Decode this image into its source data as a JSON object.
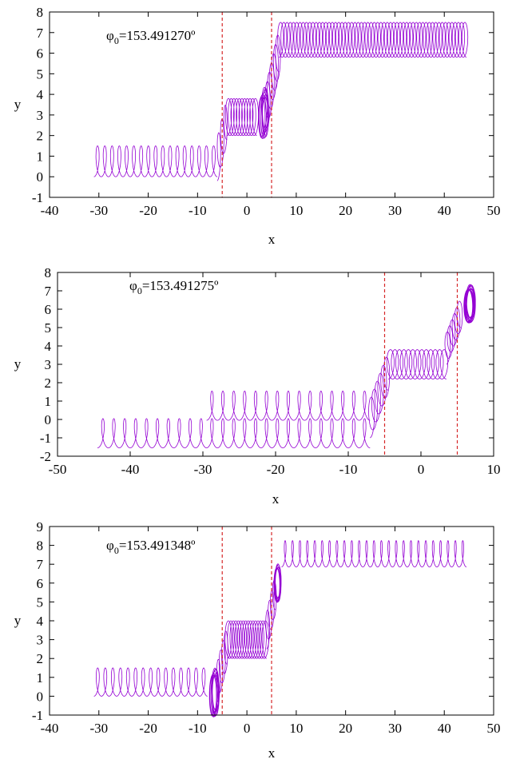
{
  "colors": {
    "trajectory": "#9400d3",
    "boundary": "#d62728",
    "axes": "#000000"
  },
  "chart_data": [
    {
      "type": "line",
      "annotation": {
        "symbol": "φ",
        "subscript": "0",
        "value": "=153.491270º"
      },
      "xlabel": "x",
      "ylabel": "y",
      "xlim": [
        -40,
        50
      ],
      "ylim": [
        -1,
        8
      ],
      "xticks": [
        -40,
        -30,
        -20,
        -10,
        0,
        10,
        20,
        30,
        40,
        50
      ],
      "yticks": [
        -1,
        0,
        1,
        2,
        3,
        4,
        5,
        6,
        7,
        8
      ],
      "boundaries": [
        -5,
        5
      ],
      "segments": [
        {
          "kind": "helix",
          "x_start": -31,
          "x_end": -6,
          "y_center": 0.75,
          "amplitude": 0.75,
          "loop_width": 1.3,
          "pitch": 1.5
        },
        {
          "kind": "helix",
          "x_start": -6,
          "x_end": -4,
          "y_start": 0.8,
          "y_end": 2.8,
          "amplitude": 1.0,
          "loop_width": 1.0,
          "pitch": 0.6
        },
        {
          "kind": "helix",
          "x_start": -4,
          "x_end": 2,
          "y_center": 2.9,
          "amplitude": 0.9,
          "loop_width": 1.5,
          "pitch": 0.55
        },
        {
          "kind": "cluster",
          "x_center": 3.4,
          "y_center": 3.1,
          "amplitude": 1.0,
          "loop_width": 1.3,
          "count": 10,
          "dx_span": 0.8,
          "dy_span": 0.5
        },
        {
          "kind": "helix",
          "x_start": 4,
          "x_end": 6.5,
          "y_start": 3.4,
          "y_end": 6.1,
          "amplitude": 1.0,
          "loop_width": 1.2,
          "pitch": 0.45
        },
        {
          "kind": "helix",
          "x_start": 6.5,
          "x_end": 44.5,
          "y_center": 6.65,
          "amplitude": 0.85,
          "loop_width": 1.5,
          "pitch": 0.65
        }
      ]
    },
    {
      "type": "line",
      "annotation": {
        "symbol": "φ",
        "subscript": "0",
        "value": "=153.491275º"
      },
      "xlabel": "x",
      "ylabel": "y",
      "xlim": [
        -50,
        10
      ],
      "ylim": [
        -2,
        8
      ],
      "xticks": [
        -50,
        -40,
        -30,
        -20,
        -10,
        0,
        10
      ],
      "yticks": [
        -2,
        -1,
        0,
        1,
        2,
        3,
        4,
        5,
        6,
        7,
        8
      ],
      "boundaries": [
        -5,
        5
      ],
      "segments": [
        {
          "kind": "helix",
          "x_start": -29.5,
          "x_end": -7,
          "y_center": 0.75,
          "amplitude": 0.8,
          "loop_width": 1.0,
          "pitch": 1.5
        },
        {
          "kind": "helix",
          "x_start": -44.5,
          "x_end": -7,
          "y_center": -0.75,
          "amplitude": 0.8,
          "loop_width": 1.0,
          "pitch": 1.5
        },
        {
          "kind": "helix",
          "x_start": -7,
          "x_end": -4.5,
          "y_start": 0.0,
          "y_end": 2.6,
          "amplitude": 1.0,
          "loop_width": 1.0,
          "pitch": 0.4
        },
        {
          "kind": "helix",
          "x_start": -4.5,
          "x_end": 3.5,
          "y_center": 3.0,
          "amplitude": 0.8,
          "loop_width": 1.3,
          "pitch": 0.6
        },
        {
          "kind": "helix",
          "x_start": 3.5,
          "x_end": 5.5,
          "y_start": 3.8,
          "y_end": 5.8,
          "amplitude": 0.8,
          "loop_width": 0.9,
          "pitch": 0.35
        },
        {
          "kind": "cluster",
          "x_center": 6.7,
          "y_center": 6.3,
          "amplitude": 0.9,
          "loop_width": 1.2,
          "count": 12,
          "dx_span": 0.4,
          "dy_span": 0.3
        }
      ]
    },
    {
      "type": "line",
      "annotation": {
        "symbol": "φ",
        "subscript": "0",
        "value": "=153.491348º"
      },
      "xlabel": "x",
      "ylabel": "y",
      "xlim": [
        -40,
        50
      ],
      "ylim": [
        -1,
        9
      ],
      "xticks": [
        -40,
        -30,
        -20,
        -10,
        0,
        10,
        20,
        30,
        40,
        50
      ],
      "yticks": [
        -1,
        0,
        1,
        2,
        3,
        4,
        5,
        6,
        7,
        8,
        9
      ],
      "boundaries": [
        -5,
        5
      ],
      "segments": [
        {
          "kind": "helix",
          "x_start": -31,
          "x_end": -8,
          "y_center": 0.75,
          "amplitude": 0.75,
          "loop_width": 1.3,
          "pitch": 1.5
        },
        {
          "kind": "cluster",
          "x_center": -6.6,
          "y_center": 0.2,
          "amplitude": 1.1,
          "loop_width": 1.4,
          "count": 10,
          "dx_span": 0.6,
          "dy_span": 0.4
        },
        {
          "kind": "helix",
          "x_start": -6,
          "x_end": -4,
          "y_start": 0.7,
          "y_end": 2.7,
          "amplitude": 1.0,
          "loop_width": 1.0,
          "pitch": 0.5
        },
        {
          "kind": "helix",
          "x_start": -4,
          "x_end": 4,
          "y_center": 3.0,
          "amplitude": 1.0,
          "loop_width": 1.6,
          "pitch": 0.5
        },
        {
          "kind": "helix",
          "x_start": 4,
          "x_end": 5.8,
          "y_start": 3.4,
          "y_end": 5.5,
          "amplitude": 0.9,
          "loop_width": 1.0,
          "pitch": 0.5
        },
        {
          "kind": "cluster",
          "x_center": 6.2,
          "y_center": 6.0,
          "amplitude": 0.9,
          "loop_width": 1.2,
          "count": 7,
          "dx_span": 0.3,
          "dy_span": 0.25
        },
        {
          "kind": "helix",
          "x_start": 7,
          "x_end": 44.5,
          "y_center": 7.55,
          "amplitude": 0.7,
          "loop_width": 1.0,
          "pitch": 1.5
        }
      ]
    }
  ]
}
